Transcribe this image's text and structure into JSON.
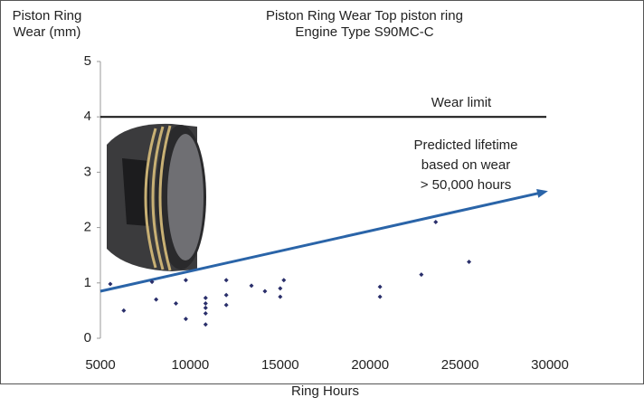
{
  "chart_data": {
    "type": "scatter",
    "title": [
      "Piston Ring Wear Top piston ring",
      "Engine Type S90MC-C"
    ],
    "y_label": [
      "Piston Ring",
      "Wear (mm)"
    ],
    "x_label": "Ring Hours",
    "x": [
      5550,
      6300,
      7870,
      8100,
      9200,
      9750,
      9750,
      10850,
      10850,
      10850,
      10850,
      10850,
      12000,
      12000,
      12000,
      13400,
      14150,
      15000,
      15000,
      15200,
      20550,
      20550,
      22850,
      23650,
      25500
    ],
    "values": [
      0.98,
      0.5,
      1.02,
      0.7,
      0.63,
      1.05,
      0.35,
      0.73,
      0.63,
      0.55,
      0.45,
      0.25,
      1.05,
      0.78,
      0.6,
      0.95,
      0.85,
      0.9,
      0.75,
      1.05,
      0.93,
      0.75,
      1.15,
      2.1,
      1.38
    ],
    "color": "#2a2f6b",
    "xlim": [
      5000,
      30000
    ],
    "xticks": [
      5000,
      10000,
      15000,
      20000,
      25000,
      30000
    ],
    "ylim": [
      0,
      5
    ],
    "yticks": [
      0,
      1,
      2,
      3,
      4,
      5
    ],
    "wear_limit": {
      "label": "Wear limit",
      "value": 4,
      "x": [
        5000,
        29800
      ],
      "color": "#111111"
    },
    "trend": {
      "x": [
        5000,
        29500
      ],
      "y": [
        0.85,
        2.63
      ],
      "color": "#2a64a8"
    },
    "annotation": [
      "Predicted lifetime",
      "based on wear",
      "> 50,000 hours"
    ]
  }
}
